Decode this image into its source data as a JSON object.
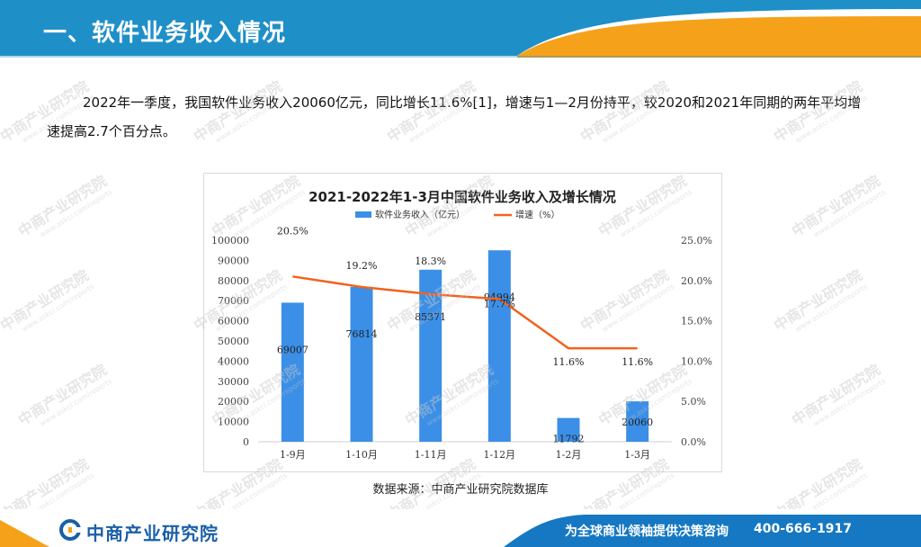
{
  "header": {
    "title": "一、软件业务收入情况"
  },
  "intro": "2022年一季度，我国软件业务收入20060亿元，同比增长11.6%[1]，增速与1—2月份持平，较2020和2021年同期的两年平均增速提高2.7个百分点。",
  "chart_data": {
    "type": "bar",
    "title": "2021-2022年1-3月中国软件业务收入及增长情况",
    "categories": [
      "1-9月",
      "1-10月",
      "1-11月",
      "1-12月",
      "1-2月",
      "1-3月"
    ],
    "series": [
      {
        "name": "软件业务收入（亿元）",
        "type": "bar",
        "axis": "left",
        "values": [
          69007,
          76814,
          85371,
          94994,
          11792,
          20060
        ],
        "color": "#3b8fe6"
      },
      {
        "name": "增速（%）",
        "type": "line",
        "axis": "right",
        "values": [
          20.5,
          19.2,
          18.3,
          17.7,
          11.6,
          11.6
        ],
        "labels": [
          "20.5%",
          "19.2%",
          "18.3%",
          "17.7%",
          "11.6%",
          "11.6%"
        ],
        "color": "#f0641e"
      }
    ],
    "yleft": {
      "ylim": [
        0,
        100000
      ],
      "ticks": [
        "0",
        "10000",
        "20000",
        "30000",
        "40000",
        "50000",
        "60000",
        "70000",
        "80000",
        "90000",
        "100000"
      ]
    },
    "yright": {
      "ylim": [
        0,
        25
      ],
      "ticks": [
        "0.0%",
        "5.0%",
        "10.0%",
        "15.0%",
        "20.0%",
        "25.0%"
      ]
    },
    "legend_position": "top",
    "grid": false
  },
  "source": "数据来源：中商产业研究院数据库",
  "watermark": {
    "text": "中商产业研究院",
    "url": "www.askci.com/reports"
  },
  "footer": {
    "brand": "中商产业研究院",
    "slogan": "为全球商业领袖提供决策咨询",
    "phone": "400-666-1917"
  },
  "colors": {
    "header_blue": "#1f8fc8",
    "accent_orange": "#f5a21a",
    "footer_blue": "#1678c2"
  }
}
